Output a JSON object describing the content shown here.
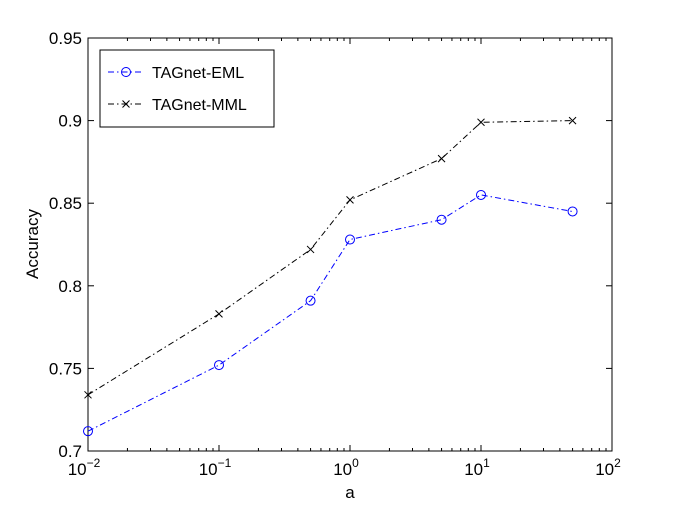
{
  "chart_data": {
    "type": "line",
    "xscale": "log",
    "xlim": [
      0.01,
      100
    ],
    "ylim": [
      0.7,
      0.95
    ],
    "xlabel": "a",
    "ylabel": "Accuracy",
    "xticks": [
      0.01,
      0.1,
      1,
      10,
      100
    ],
    "xtick_labels": [
      {
        "base": "10",
        "exp": "−2"
      },
      {
        "base": "10",
        "exp": "−1"
      },
      {
        "base": "10",
        "exp": "0"
      },
      {
        "base": "10",
        "exp": "1"
      },
      {
        "base": "10",
        "exp": "2"
      }
    ],
    "yticks": [
      0.7,
      0.75,
      0.8,
      0.85,
      0.9,
      0.95
    ],
    "ytick_labels": [
      "0.7",
      "0.75",
      "0.8",
      "0.85",
      "0.9",
      "0.95"
    ],
    "grid": false,
    "legend": "top-left",
    "series": [
      {
        "name": "TAGnet-EML",
        "color": "#0000ff",
        "marker": "circle",
        "linestyle": "dashdot",
        "x": [
          0.01,
          0.1,
          0.5,
          1,
          5,
          10,
          50
        ],
        "y": [
          0.712,
          0.752,
          0.791,
          0.828,
          0.84,
          0.855,
          0.845
        ]
      },
      {
        "name": "TAGnet-MML",
        "color": "#000000",
        "marker": "x",
        "linestyle": "dashdot",
        "x": [
          0.01,
          0.1,
          0.5,
          1,
          5,
          10,
          50
        ],
        "y": [
          0.734,
          0.783,
          0.822,
          0.852,
          0.877,
          0.899,
          0.9
        ]
      }
    ]
  }
}
